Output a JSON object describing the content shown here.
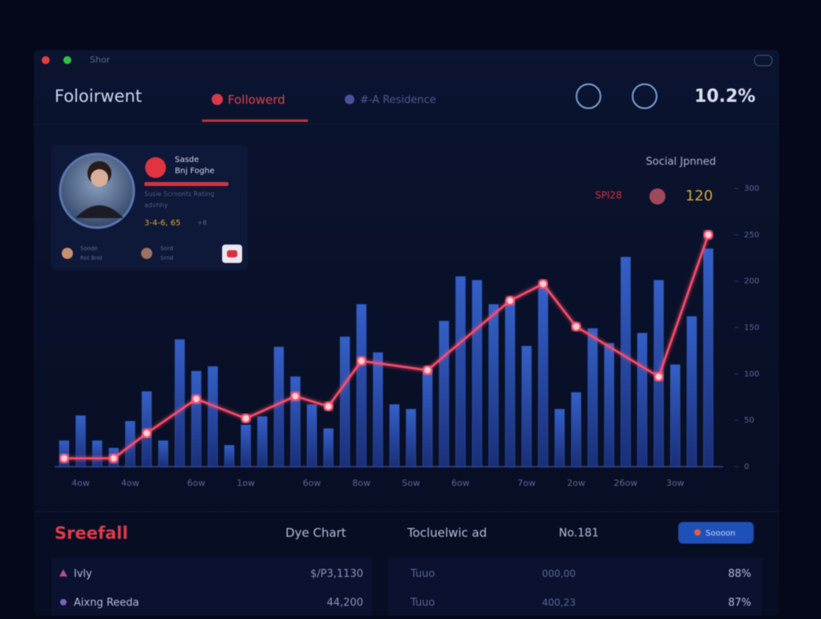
{
  "window": {
    "title": "Shor"
  },
  "header": {
    "title": "Foloirwent",
    "tabs": [
      "Followerd",
      "#-A Residence"
    ],
    "stat": "10.2%"
  },
  "profile": {
    "name": "Sasde",
    "handle": "Bnj Foghe",
    "lines": [
      "Susie Scrnonts Rating",
      "advhhy"
    ],
    "score": "3-4-6, 65",
    "score_note": "+8",
    "items": [
      "Soode",
      "Rot Bnd",
      "Sord",
      "Srnd"
    ]
  },
  "chart_data": {
    "type": "bar",
    "title": "Social Jpnned",
    "badges": [
      "SPI28",
      "120"
    ],
    "categories": [
      null,
      "4ow",
      null,
      null,
      "4ow",
      null,
      null,
      null,
      "6ow",
      null,
      null,
      "1ow",
      null,
      null,
      null,
      "6ow",
      null,
      null,
      "8ow",
      null,
      null,
      "Sow",
      null,
      null,
      "6ow",
      null,
      null,
      null,
      "7ow",
      null,
      null,
      "2ow",
      null,
      null,
      "26ow",
      null,
      null,
      "3ow",
      null,
      null
    ],
    "series": [
      {
        "color": "#2f5bc4",
        "values": [
          28,
          55,
          28,
          20,
          49,
          81,
          28,
          137,
          103,
          108,
          23,
          45,
          54,
          129,
          97,
          67,
          41,
          140,
          175,
          123,
          67,
          62,
          105,
          157,
          205,
          201,
          175,
          179,
          130,
          192,
          62,
          80,
          149,
          133,
          226,
          144,
          201,
          110,
          162,
          235
        ]
      },
      {
        "type": "line",
        "color": "#ff4d6a",
        "x": [
          0,
          3,
          5,
          8,
          11,
          14,
          16,
          18,
          22,
          27,
          29,
          31,
          36,
          39
        ],
        "values": [
          9,
          9,
          36,
          73,
          52,
          76,
          65,
          114,
          104,
          179,
          197,
          151,
          97,
          250
        ]
      }
    ],
    "ylim": [
      0,
      300
    ],
    "yticks": [
      0,
      50,
      100,
      150,
      200,
      250,
      300
    ],
    "grid": false
  },
  "bottom": {
    "left_title": "Sreefall",
    "left_subtitle": "Dye Chart",
    "right_title": "Tocluelwic ad",
    "right_code": "No.181",
    "button": "Soooon",
    "left_rows": [
      [
        "Ivly",
        "$/P3,1130"
      ],
      [
        "Aixng Reeda",
        "44,200"
      ]
    ],
    "right_rows": [
      [
        "Tuuo",
        "000,00",
        "88%"
      ],
      [
        "Tuuo",
        "400,23",
        "87%"
      ]
    ]
  }
}
